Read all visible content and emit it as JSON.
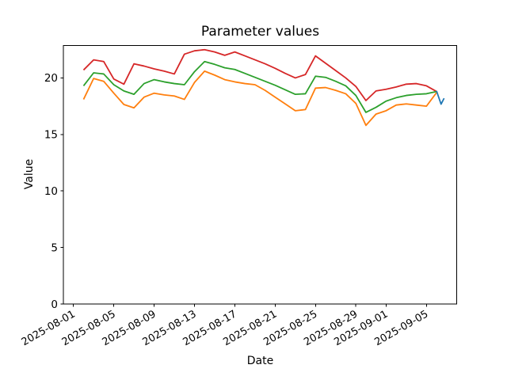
{
  "chart_data": {
    "type": "line",
    "title": "Parameter values",
    "xlabel": "Date",
    "ylabel": "Value",
    "background_color": "#ffffff",
    "spine_color": "#000000",
    "text_color": "#000000",
    "grid": false,
    "legend": null,
    "x_axis": {
      "unit": "days since 2025-08-01",
      "start_date": "2025-08-01",
      "lim": [
        -1,
        38
      ],
      "tick_days": [
        0,
        4,
        8,
        12,
        16,
        20,
        24,
        28,
        31,
        35
      ],
      "tick_labels": [
        "2025-08-01",
        "2025-08-05",
        "2025-08-09",
        "2025-08-13",
        "2025-08-17",
        "2025-08-21",
        "2025-08-25",
        "2025-08-29",
        "2025-09-01",
        "2025-09-05"
      ],
      "tick_rotation_deg": 30
    },
    "y_axis": {
      "lim": [
        0,
        22.86
      ],
      "ticks": [
        0,
        5,
        10,
        15,
        20
      ],
      "tick_labels": [
        "0",
        "5",
        "10",
        "15",
        "20"
      ]
    },
    "series": [
      {
        "name": "series-red",
        "color": "#d62728",
        "x_days": [
          1,
          2,
          3,
          4,
          5,
          6,
          7,
          8,
          9,
          10,
          11,
          12,
          13,
          14,
          15,
          16,
          17,
          18,
          19,
          20,
          21,
          22,
          23,
          24,
          25,
          26,
          27,
          28,
          29,
          30,
          31,
          32,
          33,
          34,
          35,
          36
        ],
        "values": [
          20.7,
          21.6,
          21.45,
          19.9,
          19.45,
          21.25,
          21.05,
          20.8,
          20.6,
          20.35,
          22.1,
          22.4,
          22.5,
          22.3,
          22.0,
          22.3,
          21.95,
          21.6,
          21.25,
          20.85,
          20.4,
          20.0,
          20.3,
          21.95,
          21.3,
          20.65,
          20.0,
          19.25,
          18.0,
          18.85,
          19.0,
          19.2,
          19.45,
          19.5,
          19.3,
          18.8
        ]
      },
      {
        "name": "series-green",
        "color": "#2ca02c",
        "x_days": [
          1,
          2,
          3,
          4,
          5,
          6,
          7,
          8,
          9,
          10,
          11,
          12,
          13,
          14,
          15,
          16,
          17,
          18,
          19,
          20,
          21,
          22,
          23,
          24,
          25,
          26,
          27,
          28,
          29,
          30,
          31,
          32,
          33,
          34,
          35,
          36
        ],
        "values": [
          19.3,
          20.45,
          20.35,
          19.4,
          18.85,
          18.55,
          19.5,
          19.85,
          19.65,
          19.5,
          19.4,
          20.55,
          21.45,
          21.2,
          20.9,
          20.75,
          20.4,
          20.05,
          19.7,
          19.35,
          18.95,
          18.55,
          18.6,
          20.15,
          20.05,
          19.7,
          19.3,
          18.45,
          16.95,
          17.4,
          17.95,
          18.25,
          18.45,
          18.55,
          18.6,
          18.8
        ]
      },
      {
        "name": "series-orange",
        "color": "#ff7f0e",
        "x_days": [
          1,
          2,
          3,
          4,
          5,
          6,
          7,
          8,
          9,
          10,
          11,
          12,
          13,
          14,
          15,
          16,
          17,
          18,
          19,
          20,
          21,
          22,
          23,
          24,
          25,
          26,
          27,
          28,
          29,
          30,
          31,
          32,
          33,
          34,
          35,
          36
        ],
        "values": [
          18.1,
          19.95,
          19.7,
          18.65,
          17.65,
          17.35,
          18.3,
          18.65,
          18.5,
          18.4,
          18.1,
          19.6,
          20.6,
          20.25,
          19.85,
          19.65,
          19.5,
          19.4,
          18.9,
          18.3,
          17.7,
          17.1,
          17.2,
          19.1,
          19.15,
          18.9,
          18.6,
          17.75,
          15.8,
          16.8,
          17.1,
          17.6,
          17.7,
          17.6,
          17.5,
          18.7
        ]
      },
      {
        "name": "series-blue",
        "color": "#1f77b4",
        "x_days": [
          36,
          36.45,
          36.75
        ],
        "values": [
          18.85,
          17.68,
          18.2
        ]
      }
    ]
  }
}
